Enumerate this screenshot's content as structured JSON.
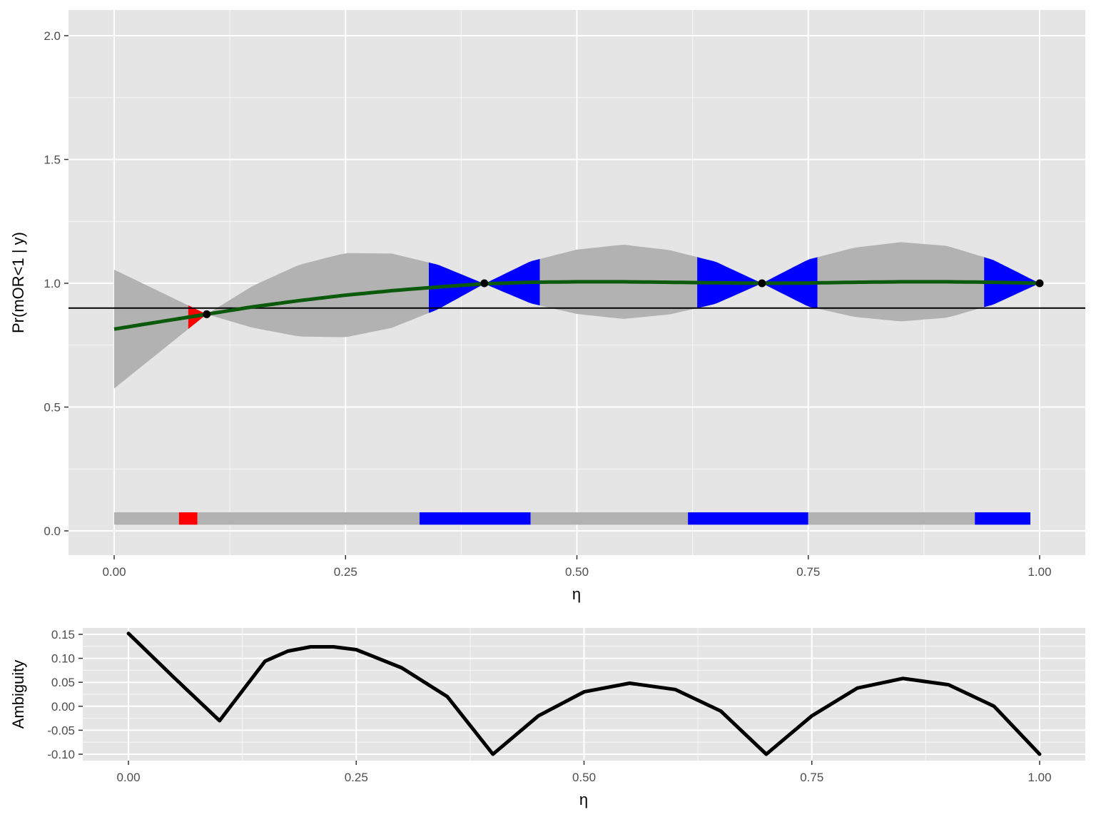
{
  "colors": {
    "panel_bg": "#e5e5e5",
    "grid_major": "#ffffff",
    "band_neutral": "#b2b2b2",
    "band_positive": "#0000ff",
    "band_negative": "#ff0000",
    "mean_curve": "#0b5a0b",
    "threshold_line": "#000000",
    "points": "#000000",
    "ambiguity_curve": "#000000"
  },
  "chart_data": [
    {
      "type": "area",
      "title": "",
      "xlabel": "η",
      "ylabel": "Pr(mOR<1 | y)",
      "xlim": [
        0,
        1
      ],
      "ylim": [
        0,
        2
      ],
      "x_ticks": [
        "0.00",
        "0.25",
        "0.50",
        "0.75",
        "1.00"
      ],
      "y_ticks": [
        "0.0",
        "0.5",
        "1.0",
        "1.5",
        "2.0"
      ],
      "grid": true,
      "threshold": 0.9,
      "anchor_points": [
        {
          "x": 0.1,
          "y": 0.875
        },
        {
          "x": 0.4,
          "y": 1.0
        },
        {
          "x": 0.7,
          "y": 1.0
        },
        {
          "x": 1.0,
          "y": 1.0
        }
      ],
      "mean_curve": {
        "x": [
          0.0,
          0.05,
          0.1,
          0.15,
          0.2,
          0.25,
          0.3,
          0.35,
          0.4,
          0.45,
          0.5,
          0.55,
          0.6,
          0.65,
          0.7,
          0.75,
          0.8,
          0.85,
          0.9,
          0.95,
          1.0
        ],
        "y": [
          0.815,
          0.845,
          0.875,
          0.905,
          0.93,
          0.952,
          0.97,
          0.985,
          0.998,
          1.004,
          1.006,
          1.006,
          1.004,
          1.002,
          1.0,
          1.001,
          1.004,
          1.006,
          1.006,
          1.004,
          1.0
        ]
      },
      "band_halfwidth": {
        "x": [
          0.0,
          0.05,
          0.1,
          0.15,
          0.2,
          0.25,
          0.3,
          0.35,
          0.4,
          0.45,
          0.5,
          0.55,
          0.6,
          0.65,
          0.7,
          0.75,
          0.8,
          0.85,
          0.9,
          0.95,
          1.0
        ],
        "y": [
          0.24,
          0.12,
          0.0,
          0.085,
          0.145,
          0.17,
          0.15,
          0.09,
          0.0,
          0.085,
          0.13,
          0.15,
          0.13,
          0.085,
          0.0,
          0.095,
          0.14,
          0.16,
          0.145,
          0.09,
          0.0
        ]
      },
      "band_regions": [
        {
          "from": 0.0,
          "to": 0.08,
          "class": "neutral"
        },
        {
          "from": 0.08,
          "to": 0.1,
          "class": "negative"
        },
        {
          "from": 0.1,
          "to": 0.34,
          "class": "neutral"
        },
        {
          "from": 0.34,
          "to": 0.46,
          "class": "positive"
        },
        {
          "from": 0.46,
          "to": 0.63,
          "class": "neutral"
        },
        {
          "from": 0.63,
          "to": 0.76,
          "class": "positive"
        },
        {
          "from": 0.76,
          "to": 0.94,
          "class": "neutral"
        },
        {
          "from": 0.94,
          "to": 1.0,
          "class": "positive"
        }
      ],
      "bottom_strip": {
        "y_center": 0.05,
        "height": 0.05,
        "segments": [
          {
            "from": 0.0,
            "to": 0.07,
            "class": "neutral"
          },
          {
            "from": 0.07,
            "to": 0.09,
            "class": "negative"
          },
          {
            "from": 0.09,
            "to": 0.33,
            "class": "neutral"
          },
          {
            "from": 0.33,
            "to": 0.45,
            "class": "positive"
          },
          {
            "from": 0.45,
            "to": 0.62,
            "class": "neutral"
          },
          {
            "from": 0.62,
            "to": 0.75,
            "class": "positive"
          },
          {
            "from": 0.75,
            "to": 0.93,
            "class": "neutral"
          },
          {
            "from": 0.93,
            "to": 0.99,
            "class": "positive"
          }
        ]
      }
    },
    {
      "type": "line",
      "title": "",
      "xlabel": "η",
      "ylabel": "Ambiguity",
      "xlim": [
        0,
        1
      ],
      "ylim": [
        -0.11,
        0.16
      ],
      "x_ticks": [
        "0.00",
        "0.25",
        "0.50",
        "0.75",
        "1.00"
      ],
      "y_ticks": [
        "-0.10",
        "-0.05",
        "0.00",
        "0.05",
        "0.10",
        "0.15"
      ],
      "grid": true,
      "series": [
        {
          "x": [
            0.0,
            0.05,
            0.1,
            0.15,
            0.175,
            0.2,
            0.225,
            0.25,
            0.3,
            0.35,
            0.4,
            0.45,
            0.5,
            0.55,
            0.6,
            0.65,
            0.7,
            0.75,
            0.8,
            0.85,
            0.9,
            0.95,
            1.0
          ],
          "values": [
            0.152,
            0.06,
            -0.03,
            0.094,
            0.115,
            0.124,
            0.124,
            0.118,
            0.08,
            0.02,
            -0.1,
            -0.02,
            0.03,
            0.048,
            0.035,
            -0.01,
            -0.1,
            -0.02,
            0.038,
            0.058,
            0.045,
            0.0,
            -0.1
          ]
        }
      ]
    }
  ]
}
